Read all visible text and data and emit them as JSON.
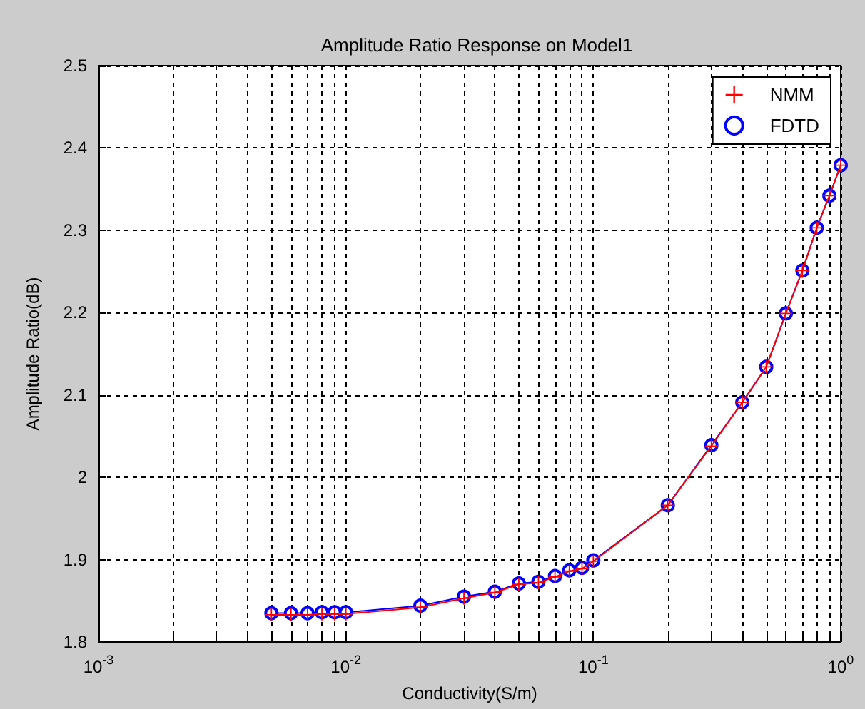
{
  "chart_data": {
    "type": "line",
    "title": "Amplitude Ratio Response on Model1",
    "xlabel": "Conductivity(S/m)",
    "ylabel": "Amplitude Ratio(dB)",
    "log": "x",
    "grid": true,
    "legend": "top right",
    "x": [
      0.005,
      0.006,
      0.007,
      0.008,
      0.009,
      0.01,
      0.02,
      0.03,
      0.04,
      0.05,
      0.06,
      0.07,
      0.08,
      0.09,
      0.1,
      0.2,
      0.3,
      0.4,
      0.5,
      0.6,
      0.7,
      0.8,
      0.9,
      1.0
    ],
    "series": [
      {
        "name": "NMM",
        "color": "#ff0000",
        "marker": "cross",
        "values": [
          1.833,
          1.833,
          1.833,
          1.834,
          1.834,
          1.834,
          1.842,
          1.853,
          1.86,
          1.87,
          1.872,
          1.879,
          1.886,
          1.889,
          1.898,
          1.966,
          2.038,
          2.091,
          2.134,
          2.199,
          2.251,
          2.303,
          2.342,
          2.379
        ]
      },
      {
        "name": "FDTD",
        "color": "#0000ff",
        "marker": "circle",
        "values": [
          1.835,
          1.835,
          1.835,
          1.836,
          1.836,
          1.836,
          1.844,
          1.855,
          1.861,
          1.871,
          1.873,
          1.88,
          1.887,
          1.89,
          1.899,
          1.966,
          2.039,
          2.091,
          2.134,
          2.199,
          2.251,
          2.303,
          2.342,
          2.379
        ]
      }
    ],
    "xlim": [
      0.001,
      1
    ],
    "xticks": [
      {
        "value": 0.001,
        "label": "10$^{-3}$"
      },
      {
        "value": 0.002,
        "label": null
      },
      {
        "value": 0.003,
        "label": null
      },
      {
        "value": 0.004,
        "label": null
      },
      {
        "value": 0.005,
        "label": null
      },
      {
        "value": 0.006,
        "label": null
      },
      {
        "value": 0.007,
        "label": null
      },
      {
        "value": 0.008,
        "label": null
      },
      {
        "value": 0.009,
        "label": null
      },
      {
        "value": 0.01,
        "label": "10$^{-2}$"
      },
      {
        "value": 0.02,
        "label": null
      },
      {
        "value": 0.03,
        "label": null
      },
      {
        "value": 0.04,
        "label": null
      },
      {
        "value": 0.05,
        "label": null
      },
      {
        "value": 0.06,
        "label": null
      },
      {
        "value": 0.07,
        "label": null
      },
      {
        "value": 0.08,
        "label": null
      },
      {
        "value": 0.09,
        "label": null
      },
      {
        "value": 0.1,
        "label": "10$^{-1}$"
      },
      {
        "value": 0.2,
        "label": null
      },
      {
        "value": 0.3,
        "label": null
      },
      {
        "value": 0.4,
        "label": null
      },
      {
        "value": 0.5,
        "label": null
      },
      {
        "value": 0.6,
        "label": null
      },
      {
        "value": 0.7,
        "label": null
      },
      {
        "value": 0.8,
        "label": null
      },
      {
        "value": 0.9,
        "label": null
      },
      {
        "value": 1,
        "label": "10$^{0}$"
      }
    ],
    "ylim": [
      1.8,
      2.5
    ],
    "yticks": [
      1.8,
      1.9,
      2,
      2.1,
      2.2,
      2.3,
      2.4,
      2.5
    ]
  }
}
